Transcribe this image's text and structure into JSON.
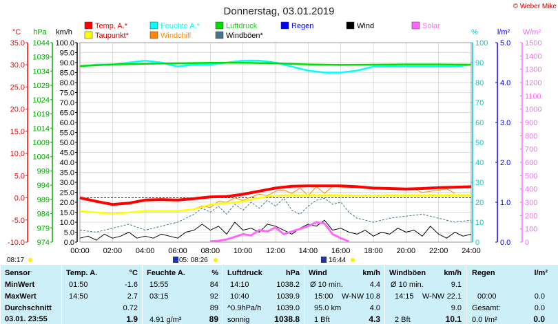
{
  "page": {
    "title": "Donnerstag, 03.01.2019",
    "credit": "© Weber Mike",
    "sunrise": "08:17",
    "sunset": "16:44",
    "moon": "05: 08:26"
  },
  "legend": [
    {
      "label": "Temp. A.*",
      "color": "#ff0000"
    },
    {
      "label": "Feuchte A.*",
      "color": "#00ffff"
    },
    {
      "label": "Luftdruck",
      "color": "#00dd00"
    },
    {
      "label": "Regen",
      "color": "#0000ff"
    },
    {
      "label": "Wind",
      "color": "#000000"
    },
    {
      "label": "Solar",
      "color": "#ff66ff"
    },
    {
      "label": "Taupunkt*",
      "color": "#ffff00"
    },
    {
      "label": "Windchill",
      "color": "#ff8800"
    },
    {
      "label": "Windböen*",
      "color": "#447788"
    }
  ],
  "axes_headers": {
    "temp": "°C",
    "pressure": "hPa",
    "wind": "km/h",
    "humidity": "%",
    "rain": "l/m²",
    "solar": "W/m²"
  },
  "chart_data": {
    "type": "line",
    "x_label": "",
    "x_ticks": [
      "00:00",
      "02:00",
      "04:00",
      "06:00",
      "08:00",
      "10:00",
      "12:00",
      "14:00",
      "16:00",
      "18:00",
      "20:00",
      "22:00",
      "24:00"
    ],
    "axes": {
      "temp": {
        "unit": "°C",
        "range": [
          -10,
          35
        ],
        "ticks": [
          "35.0",
          "30.0",
          "25.0",
          "20.0",
          "15.0",
          "10.0",
          "5.0",
          "0.0",
          "-5.0",
          "-10.0"
        ],
        "color": "#ff0000"
      },
      "pressure": {
        "unit": "hPa",
        "range": [
          974,
          1046.5
        ],
        "ticks": [
          "1044",
          "1039",
          "1034",
          "1029",
          "1024",
          "1019",
          "1014",
          "1009",
          "1004",
          "999",
          "994",
          "989",
          "984",
          "979",
          "974"
        ],
        "color": "#00aa00"
      },
      "wind": {
        "unit": "km/h",
        "range": [
          0,
          100
        ],
        "ticks": [
          "100.0",
          "95.0",
          "90.0",
          "85.0",
          "80.0",
          "75.0",
          "70.0",
          "65.0",
          "60.0",
          "55.0",
          "50.0",
          "45.0",
          "40.0",
          "35.0",
          "30.0",
          "25.0",
          "20.0",
          "15.0",
          "10.0",
          "5.0",
          "0.0"
        ],
        "color": "#000000"
      },
      "humidity": {
        "unit": "%",
        "range": [
          0,
          100
        ],
        "ticks": [
          "100",
          "90",
          "80",
          "70",
          "60",
          "50",
          "40",
          "30",
          "20",
          "10",
          "0"
        ],
        "color": "#00cccc"
      },
      "rain": {
        "unit": "l/m²",
        "range": [
          0,
          5
        ],
        "ticks": [
          "5.0",
          "4.0",
          "3.0",
          "2.0",
          "1.0",
          "0.0"
        ],
        "color": "#0000ff"
      },
      "solar": {
        "unit": "W/m²",
        "range": [
          0,
          1500
        ],
        "ticks": [
          "1500",
          "1400",
          "1300",
          "1200",
          "1100",
          "1000",
          "900",
          "800",
          "700",
          "600",
          "500",
          "400",
          "300",
          "200",
          "100",
          "0"
        ],
        "color": "#ff66ff"
      }
    },
    "series": [
      {
        "name": "Temp. A.*",
        "axis": "temp",
        "color": "#ff0000",
        "x": [
          0,
          1,
          2,
          3,
          4,
          5,
          6,
          7,
          8,
          9,
          10,
          11,
          12,
          13,
          14,
          15,
          16,
          17,
          18,
          19,
          20,
          21,
          22,
          23,
          24
        ],
        "y": [
          0.0,
          -0.8,
          -1.5,
          -1.2,
          -0.5,
          -0.4,
          -0.5,
          -0.2,
          0.2,
          0.3,
          0.8,
          1.5,
          2.2,
          2.6,
          2.7,
          2.7,
          2.7,
          2.5,
          2.2,
          2.1,
          2.0,
          2.1,
          2.3,
          2.4,
          2.5
        ]
      },
      {
        "name": "Taupunkt*",
        "axis": "temp",
        "color": "#ffff00",
        "x": [
          0,
          1,
          2,
          3,
          4,
          5,
          6,
          7,
          8,
          9,
          10,
          11,
          12,
          13,
          14,
          15,
          16,
          17,
          18,
          19,
          20,
          21,
          22,
          23,
          24
        ],
        "y": [
          -3.0,
          -3.3,
          -3.6,
          -3.3,
          -3.0,
          -3.0,
          -3.0,
          -2.6,
          -1.5,
          -1.2,
          -0.8,
          0.0,
          0.5,
          0.6,
          0.6,
          0.6,
          0.6,
          0.5,
          0.5,
          0.6,
          0.6,
          0.6,
          0.6,
          0.6,
          0.6
        ]
      },
      {
        "name": "Windchill",
        "axis": "temp",
        "color": "#ff8800",
        "x": [
          7,
          7.5,
          8,
          8.5,
          9,
          9.5,
          10,
          10.5,
          11,
          11.5,
          12,
          12.5,
          13,
          13.5,
          14,
          14.5,
          15,
          15.5,
          16,
          20.5,
          21,
          22.5,
          23
        ],
        "y": [
          -2.5,
          -1.8,
          -2.2,
          -0.8,
          -1.0,
          0.0,
          -0.6,
          0.2,
          0.8,
          0.5,
          1.5,
          1.8,
          1.0,
          2.2,
          0.5,
          2.5,
          1.0,
          2.6,
          2.4,
          2.0,
          1.2,
          2.0,
          1.0
        ]
      },
      {
        "name": "Luftdruck",
        "axis": "pressure",
        "color": "#00dd00",
        "x": [
          0,
          2,
          4,
          6,
          8,
          10,
          12,
          14,
          16,
          18,
          20,
          22,
          24
        ],
        "y": [
          1038.0,
          1038.6,
          1038.8,
          1039.0,
          1039.2,
          1039.2,
          1039.0,
          1038.6,
          1038.4,
          1038.5,
          1038.6,
          1038.6,
          1038.5
        ]
      },
      {
        "name": "Feuchte A.*",
        "axis": "humidity",
        "color": "#00ffff",
        "x": [
          0,
          1,
          2,
          3,
          4,
          5,
          6,
          7,
          8,
          9,
          10,
          11,
          12,
          13,
          14,
          15,
          16,
          17,
          18,
          19,
          20,
          21,
          22,
          23,
          24
        ],
        "y": [
          88,
          89,
          89,
          90,
          91,
          90,
          88,
          89,
          89,
          90,
          91,
          91,
          90,
          88,
          86,
          85,
          85,
          86,
          88,
          88,
          88,
          88,
          88,
          88,
          89
        ]
      },
      {
        "name": "Wind",
        "axis": "wind",
        "color": "#000000",
        "x": [
          0,
          0.5,
          1,
          1.5,
          2,
          2.5,
          3,
          3.5,
          4,
          4.5,
          5,
          5.5,
          6,
          6.5,
          7,
          7.5,
          8,
          8.5,
          9,
          9.5,
          10,
          10.5,
          11,
          11.5,
          12,
          12.5,
          13,
          13.5,
          14,
          14.5,
          15,
          15.5,
          16,
          16.5,
          17,
          17.5,
          18,
          18.5,
          19,
          19.5,
          20,
          20.5,
          21,
          21.5,
          22,
          22.5,
          23,
          23.5,
          24
        ],
        "y": [
          2,
          3,
          1,
          4,
          2,
          3,
          5,
          2,
          3,
          2,
          4,
          3,
          2,
          5,
          6,
          9,
          6,
          8,
          4,
          10,
          6,
          7,
          5,
          9,
          8,
          6,
          4,
          7,
          9,
          8,
          11,
          6,
          7,
          5,
          4,
          6,
          3,
          5,
          4,
          7,
          5,
          6,
          3,
          8,
          4,
          2,
          5,
          3,
          4
        ]
      },
      {
        "name": "Windböen*",
        "axis": "wind",
        "color": "#447788",
        "x": [
          0,
          1,
          2,
          3,
          4,
          5,
          6,
          6.5,
          7,
          7.5,
          8,
          8.5,
          9,
          9.5,
          10,
          10.5,
          11,
          11.5,
          12,
          12.5,
          13,
          13.5,
          14,
          14.5,
          15,
          15.5,
          16,
          16.5,
          17,
          18,
          19,
          20,
          21,
          22,
          23,
          24
        ],
        "y": [
          6,
          5,
          7,
          9,
          6,
          8,
          10,
          12,
          14,
          17,
          15,
          18,
          14,
          19,
          16,
          20,
          17,
          21,
          18,
          22,
          16,
          14,
          18,
          21,
          22,
          19,
          20,
          15,
          12,
          10,
          12,
          13,
          14,
          12,
          10,
          11
        ]
      },
      {
        "name": "Solar",
        "axis": "solar",
        "color": "#ff66ff",
        "x": [
          8,
          8.5,
          9,
          9.5,
          10,
          10.5,
          11,
          11.5,
          12,
          12.5,
          13,
          13.5,
          14,
          14.5,
          15,
          15.5,
          16,
          16.5
        ],
        "y": [
          5,
          10,
          20,
          40,
          60,
          50,
          90,
          80,
          110,
          60,
          80,
          100,
          120,
          150,
          140,
          60,
          30,
          5
        ]
      }
    ]
  },
  "table": {
    "headers": {
      "sensor": "Sensor",
      "temp": "Temp. A.",
      "temp_unit": "°C",
      "hum": "Feuchte A.",
      "hum_unit": "%",
      "press": "Luftdruck",
      "press_unit": "hPa",
      "wind": "Wind",
      "wind_unit": "km/h",
      "gust": "Windböen",
      "gust_unit": "km/h",
      "rain": "Regen",
      "rain_unit": "l/m²"
    },
    "rows": [
      {
        "label": "MinWert",
        "t_time": "01:50",
        "t_val": "-1.6",
        "h_time": "15:55",
        "h_val": "84",
        "p_time": "14:10",
        "p_val": "1038.2",
        "w_time": "Ø 10 min.",
        "w_val": "4.4",
        "g_time": "Ø 10 min.",
        "g_val": "9.1",
        "r_time": "",
        "r_val": ""
      },
      {
        "label": "MaxWert",
        "t_time": "14:50",
        "t_val": "2.7",
        "h_time": "03:15",
        "h_val": "92",
        "p_time": "10:40",
        "p_val": "1039.9",
        "w_time": "15:00",
        "w_dir": "W-NW",
        "w_val": "10.8",
        "g_time": "14:15",
        "g_dir": "W-NW",
        "g_val": "22.1",
        "r_time": "00:00",
        "r_val": "0.0"
      },
      {
        "label": "Durchschnitt",
        "t_time": "",
        "t_val": "0.72",
        "h_time": "",
        "h_val": "89",
        "p_time": "^0.9hPa/h",
        "p_val": "1039.0",
        "w_time": "95.0 km",
        "w_val": "4.0",
        "g_time": "",
        "g_val": "9.0",
        "r_time": "Gesamt:",
        "r_val": "0.0"
      },
      {
        "label": "03.01.  23:55",
        "t_time": "",
        "t_val": "1.9",
        "h_time": "4.91 g/m³",
        "h_val": "89",
        "p_time": "sonnig",
        "p_val": "1038.8",
        "w_time": "1 Bft",
        "w_val": "4.3",
        "g_time": "2 Bft",
        "g_val": "10.1",
        "r_time": "0.0 l/m²",
        "r_val": "0.0"
      }
    ]
  }
}
